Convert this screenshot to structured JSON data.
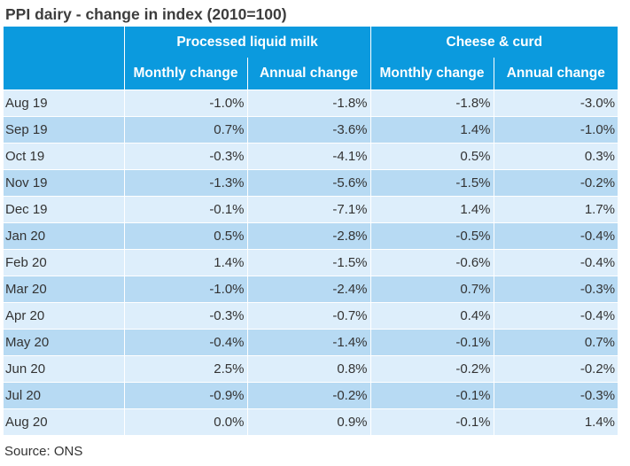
{
  "title": "PPI dairy - change in index (2010=100)",
  "header": {
    "groups": [
      "Processed liquid milk",
      "Cheese & curd"
    ],
    "subheaders": [
      "Monthly change",
      "Annual change",
      "Monthly change",
      "Annual change"
    ]
  },
  "rows": [
    {
      "label": "Aug 19",
      "values": [
        "-1.0%",
        "-1.8%",
        "-1.8%",
        "-3.0%"
      ]
    },
    {
      "label": "Sep 19",
      "values": [
        "0.7%",
        "-3.6%",
        "1.4%",
        "-1.0%"
      ]
    },
    {
      "label": "Oct 19",
      "values": [
        "-0.3%",
        "-4.1%",
        "0.5%",
        "0.3%"
      ]
    },
    {
      "label": "Nov 19",
      "values": [
        "-1.3%",
        "-5.6%",
        "-1.5%",
        "-0.2%"
      ]
    },
    {
      "label": "Dec 19",
      "values": [
        "-0.1%",
        "-7.1%",
        "1.4%",
        "1.7%"
      ]
    },
    {
      "label": "Jan 20",
      "values": [
        "0.5%",
        "-2.8%",
        "-0.5%",
        "-0.4%"
      ]
    },
    {
      "label": "Feb 20",
      "values": [
        "1.4%",
        "-1.5%",
        "-0.6%",
        "-0.4%"
      ]
    },
    {
      "label": "Mar 20",
      "values": [
        "-1.0%",
        "-2.4%",
        "0.7%",
        "-0.3%"
      ]
    },
    {
      "label": "Apr 20",
      "values": [
        "-0.3%",
        "-0.7%",
        "0.4%",
        "-0.4%"
      ]
    },
    {
      "label": "May 20",
      "values": [
        "-0.4%",
        "-1.4%",
        "-0.1%",
        "0.7%"
      ]
    },
    {
      "label": "Jun 20",
      "values": [
        "2.5%",
        "0.8%",
        "-0.2%",
        "-0.2%"
      ]
    },
    {
      "label": "Jul 20",
      "values": [
        "-0.9%",
        "-0.2%",
        "-0.1%",
        "-0.3%"
      ]
    },
    {
      "label": "Aug 20",
      "values": [
        "0.0%",
        "0.9%",
        "-0.1%",
        "1.4%"
      ]
    }
  ],
  "source": "Source: ONS",
  "colors": {
    "header_bg": "#0b9ade",
    "row_light": "#ddeefb",
    "row_dark": "#b7daf3"
  }
}
